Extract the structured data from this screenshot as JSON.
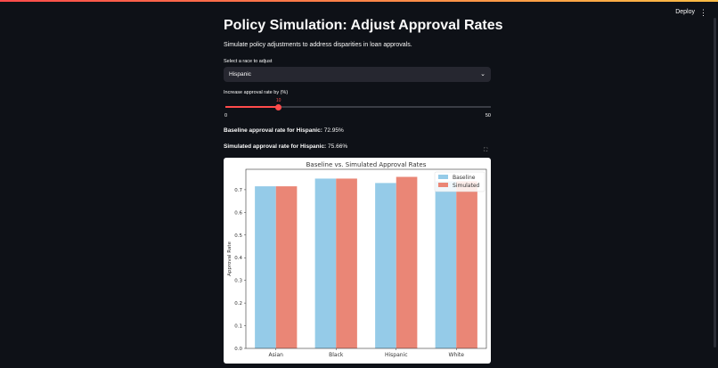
{
  "header": {
    "deploy_label": "Deploy",
    "menu_icon": "⋮"
  },
  "title": "Policy Simulation: Adjust Approval Rates",
  "subtitle": "Simulate policy adjustments to address disparities in loan approvals.",
  "race_select": {
    "label": "Select a race to adjust",
    "value": "Hispanic"
  },
  "slider": {
    "label": "Increase approval rate by (%)",
    "value": 10,
    "value_label": "10",
    "min_label": "0",
    "max_label": "50",
    "min": 0,
    "max": 50
  },
  "stats": {
    "baseline_label": "Baseline approval rate for Hispanic:",
    "baseline_value": "72.95%",
    "simulated_label": "Simulated approval rate for Hispanic:",
    "simulated_value": "75.66%"
  },
  "colors": {
    "baseline": "#95cbe8",
    "simulated": "#ea8676",
    "accent": "#ff4b4b"
  },
  "chart_data": {
    "type": "bar",
    "title": "Baseline vs. Simulated Approval Rates",
    "xlabel": "",
    "ylabel": "Approval Rate",
    "categories": [
      "Asian",
      "Black",
      "Hispanic",
      "White"
    ],
    "series": [
      {
        "name": "Baseline",
        "values": [
          0.715,
          0.749,
          0.7295,
          0.737
        ]
      },
      {
        "name": "Simulated",
        "values": [
          0.715,
          0.749,
          0.7566,
          0.737
        ]
      }
    ],
    "ylim": [
      0,
      0.79
    ],
    "yticks": [
      "0.0",
      "0.1",
      "0.2",
      "0.3",
      "0.4",
      "0.5",
      "0.6",
      "0.7"
    ],
    "legend": "top-right"
  }
}
